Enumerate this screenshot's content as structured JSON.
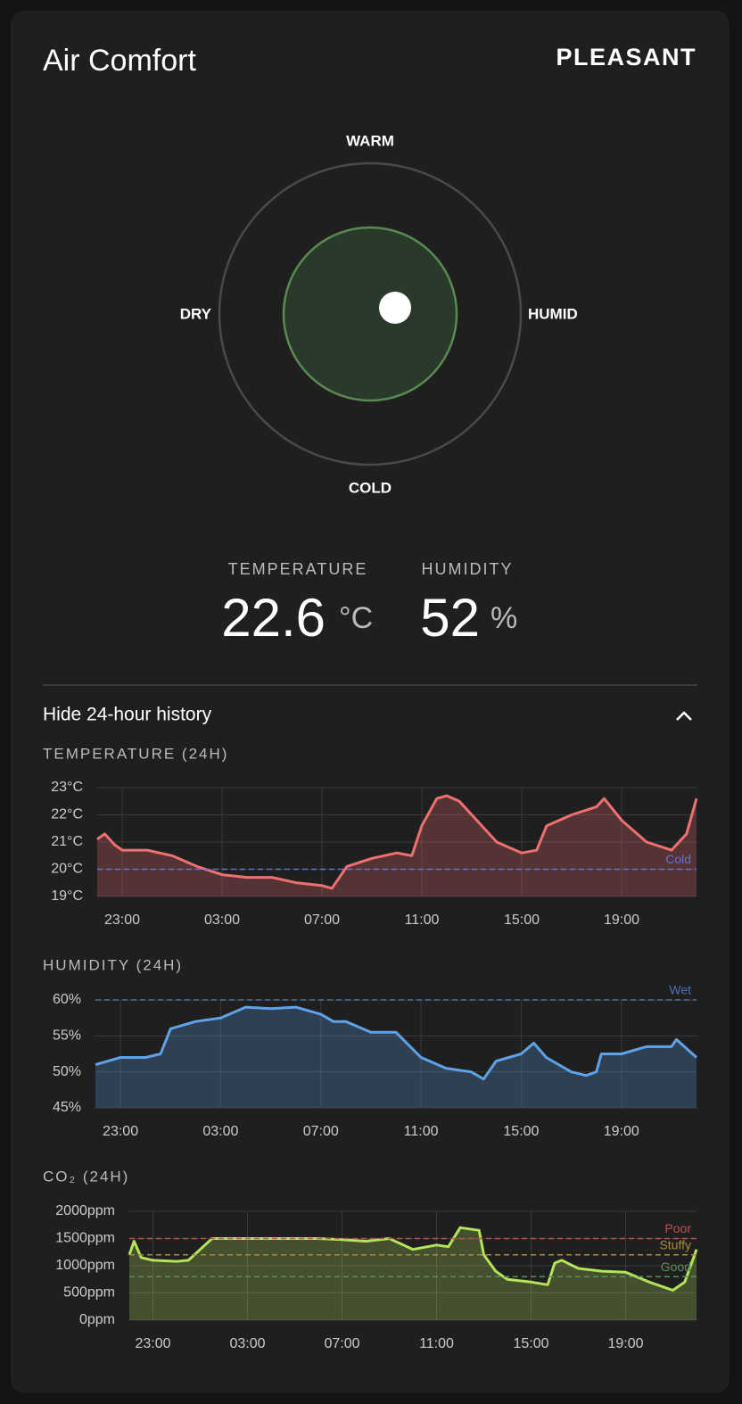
{
  "card": {
    "title": "Air Comfort",
    "status": "PLEASANT",
    "compass": {
      "top": "WARM",
      "left": "DRY",
      "right": "HUMID",
      "bottom": "COLD"
    },
    "readings": [
      {
        "label": "TEMPERATURE",
        "value": 22.6,
        "unit": "°C"
      },
      {
        "label": "HUMIDITY",
        "value": 52,
        "unit": "%"
      }
    ],
    "toggle": "Hide 24-hour history"
  },
  "chart_data": [
    {
      "type": "line",
      "title": "TEMPERATURE (24H)",
      "x": [
        22,
        22.3,
        22.7,
        23,
        24,
        25,
        26,
        27,
        28,
        29,
        30,
        31,
        31.4,
        32,
        33,
        34,
        34.6,
        35,
        35.6,
        36,
        36.5,
        37,
        38,
        39,
        39.6,
        40,
        41,
        42,
        42.3,
        43,
        44,
        45,
        45.6,
        46
      ],
      "series": [
        {
          "name": "Temperature",
          "color": "#f07070",
          "values": [
            21.1,
            21.3,
            20.9,
            20.7,
            20.7,
            20.5,
            20.1,
            19.8,
            19.7,
            19.7,
            19.5,
            19.4,
            19.3,
            20.1,
            20.4,
            20.6,
            20.5,
            21.6,
            22.6,
            22.7,
            22.5,
            22.0,
            21.0,
            20.6,
            20.7,
            21.6,
            22.0,
            22.3,
            22.6,
            21.8,
            21.0,
            20.7,
            21.3,
            22.6
          ]
        }
      ],
      "xlim": [
        22,
        46
      ],
      "xticks": [
        {
          "value": 23,
          "label": "23:00"
        },
        {
          "value": 27,
          "label": "03:00"
        },
        {
          "value": 31,
          "label": "07:00"
        },
        {
          "value": 35,
          "label": "11:00"
        },
        {
          "value": 39,
          "label": "15:00"
        },
        {
          "value": 43,
          "label": "19:00"
        }
      ],
      "ylim": [
        19,
        23
      ],
      "yticks": [
        {
          "value": 19,
          "label": "19°C"
        },
        {
          "value": 20,
          "label": "20°C"
        },
        {
          "value": 21,
          "label": "21°C"
        },
        {
          "value": 22,
          "label": "22°C"
        },
        {
          "value": 23,
          "label": "23°C"
        }
      ],
      "thresholds": [
        {
          "value": 20,
          "label": "Cold",
          "color": "#6b70d6"
        }
      ],
      "grid": true
    },
    {
      "type": "line",
      "title": "HUMIDITY (24H)",
      "x": [
        22,
        22.5,
        23,
        24,
        24.6,
        25,
        26,
        27,
        28,
        29,
        30,
        31,
        31.5,
        32,
        33,
        34,
        35,
        36,
        37,
        37.5,
        38,
        39,
        39.5,
        40,
        41,
        41.6,
        42,
        42.2,
        43,
        44,
        45,
        45.2,
        46
      ],
      "series": [
        {
          "name": "Humidity",
          "color": "#5ea3ea",
          "values": [
            51,
            51.5,
            52,
            52,
            52.5,
            56,
            57,
            57.5,
            59,
            58.8,
            59,
            58,
            57,
            57,
            55.5,
            55.5,
            52,
            50.5,
            50,
            49,
            51.5,
            52.5,
            54,
            52,
            50,
            49.5,
            50,
            52.5,
            52.5,
            53.5,
            53.5,
            54.5,
            52
          ]
        }
      ],
      "xlim": [
        22,
        46
      ],
      "xticks": [
        {
          "value": 23,
          "label": "23:00"
        },
        {
          "value": 27,
          "label": "03:00"
        },
        {
          "value": 31,
          "label": "07:00"
        },
        {
          "value": 35,
          "label": "11:00"
        },
        {
          "value": 39,
          "label": "15:00"
        },
        {
          "value": 43,
          "label": "19:00"
        }
      ],
      "ylim": [
        45,
        60
      ],
      "yticks": [
        {
          "value": 45,
          "label": "45%"
        },
        {
          "value": 50,
          "label": "50%"
        },
        {
          "value": 55,
          "label": "55%"
        },
        {
          "value": 60,
          "label": "60%"
        }
      ],
      "thresholds": [
        {
          "value": 60,
          "label": "Wet",
          "color": "#4f6fb8"
        }
      ],
      "grid": true
    },
    {
      "type": "line",
      "title": "CO₂ (24H)",
      "x": [
        22,
        22.2,
        22.5,
        23,
        24,
        24.5,
        25,
        25.5,
        26,
        27,
        28,
        29,
        30,
        31,
        32,
        33,
        34,
        35,
        35.5,
        36,
        36.8,
        37,
        37.5,
        38,
        39,
        39.7,
        40,
        40.3,
        41,
        42,
        43,
        44,
        45,
        45.5,
        46
      ],
      "series": [
        {
          "name": "CO₂",
          "color": "#b5e35a",
          "values": [
            1200,
            1450,
            1150,
            1100,
            1080,
            1100,
            1300,
            1500,
            1500,
            1500,
            1500,
            1500,
            1500,
            1480,
            1450,
            1500,
            1300,
            1380,
            1350,
            1700,
            1650,
            1200,
            900,
            750,
            700,
            650,
            1050,
            1100,
            950,
            900,
            880,
            700,
            550,
            700,
            1300
          ]
        }
      ],
      "xlim": [
        22,
        46
      ],
      "xticks": [
        {
          "value": 23,
          "label": "23:00"
        },
        {
          "value": 27,
          "label": "03:00"
        },
        {
          "value": 31,
          "label": "07:00"
        },
        {
          "value": 35,
          "label": "11:00"
        },
        {
          "value": 39,
          "label": "15:00"
        },
        {
          "value": 43,
          "label": "19:00"
        }
      ],
      "ylim": [
        0,
        2000
      ],
      "yticks": [
        {
          "value": 0,
          "label": "0ppm"
        },
        {
          "value": 500,
          "label": "500ppm"
        },
        {
          "value": 1000,
          "label": "1000ppm"
        },
        {
          "value": 1500,
          "label": "1500ppm"
        },
        {
          "value": 2000,
          "label": "2000ppm"
        }
      ],
      "thresholds": [
        {
          "value": 1500,
          "label": "Poor",
          "color": "#c05050"
        },
        {
          "value": 1200,
          "label": "Stuffy",
          "color": "#b08a3a"
        },
        {
          "value": 800,
          "label": "Good",
          "color": "#5c8f5c"
        }
      ],
      "grid": true
    }
  ]
}
